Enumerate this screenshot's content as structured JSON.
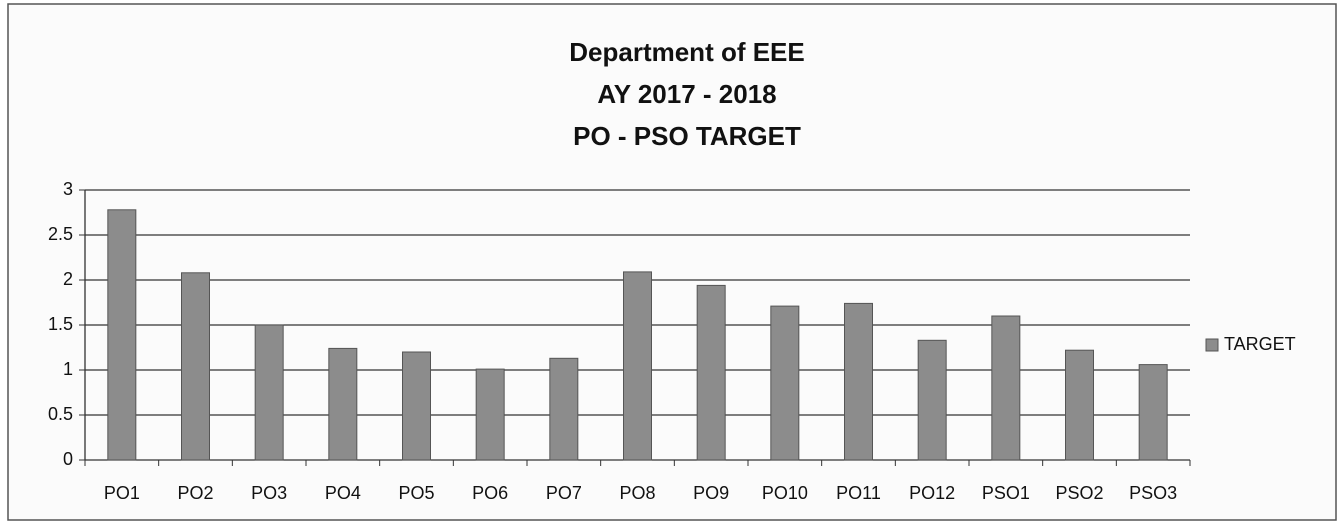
{
  "chart_data": {
    "type": "bar",
    "title": [
      "Department of EEE",
      "AY 2017 - 2018",
      "PO - PSO TARGET"
    ],
    "categories": [
      "PO1",
      "PO2",
      "PO3",
      "PO4",
      "PO5",
      "PO6",
      "PO7",
      "PO8",
      "PO9",
      "PO10",
      "PO11",
      "PO12",
      "PSO1",
      "PSO2",
      "PSO3"
    ],
    "series": [
      {
        "name": "TARGET",
        "color": "#8c8c8c",
        "values": [
          2.78,
          2.08,
          1.5,
          1.24,
          1.2,
          1.01,
          1.13,
          2.09,
          1.94,
          1.71,
          1.74,
          1.33,
          1.6,
          1.22,
          1.06
        ]
      }
    ],
    "ylim": [
      0,
      3
    ],
    "yticks": [
      0,
      0.5,
      1,
      1.5,
      2,
      2.5,
      3
    ],
    "grid": true,
    "legend": "right"
  }
}
